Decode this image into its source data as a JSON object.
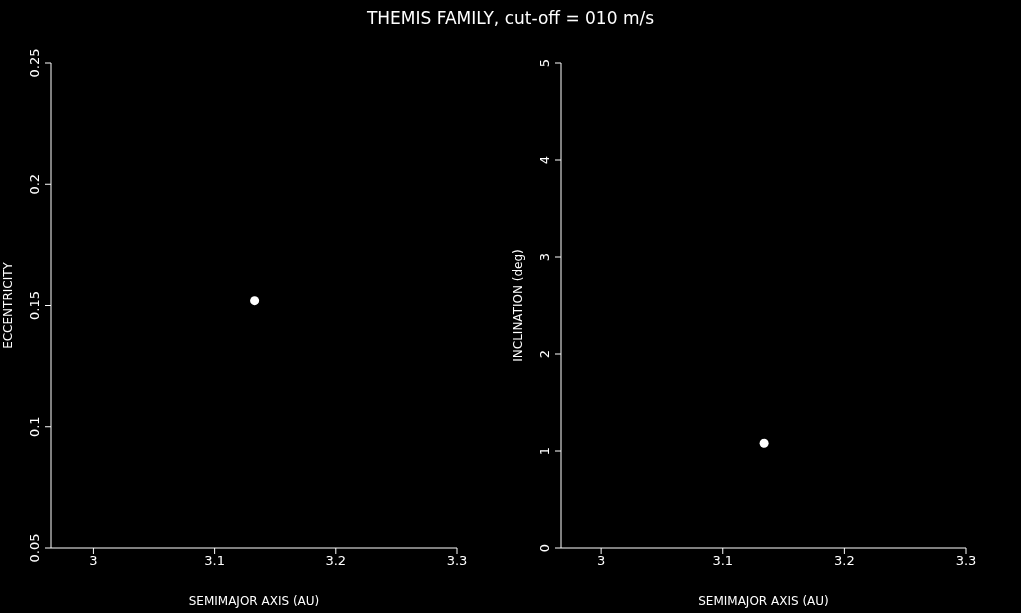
{
  "chart_data": [
    {
      "type": "scatter",
      "title": "THEMIS FAMILY, cut-off = 010 m/s",
      "xlabel": "SEMIMAJOR AXIS (AU)",
      "ylabel": "ECCENTRICITY",
      "xlim": [
        2.965,
        3.3
      ],
      "xticks": [
        3,
        3.1,
        3.2,
        3.3
      ],
      "ylim": [
        0.05,
        0.25
      ],
      "yticks": [
        0.05,
        0.1,
        0.15,
        0.2,
        0.25
      ],
      "marker": "circle",
      "series": [
        {
          "color": "#ffffff",
          "x": [
            3.133
          ],
          "values": [
            0.152
          ]
        }
      ]
    },
    {
      "type": "scatter",
      "xlabel": "SEMIMAJOR AXIS (AU)",
      "ylabel": "INCLINATION (deg)",
      "xlim": [
        2.967,
        3.3
      ],
      "xticks": [
        3,
        3.1,
        3.2,
        3.3
      ],
      "ylim": [
        0,
        5
      ],
      "yticks": [
        0,
        1,
        2,
        3,
        4,
        5
      ],
      "marker": "circle",
      "series": [
        {
          "color": "#ffffff",
          "x": [
            3.134
          ],
          "values": [
            1.08
          ]
        }
      ]
    }
  ]
}
